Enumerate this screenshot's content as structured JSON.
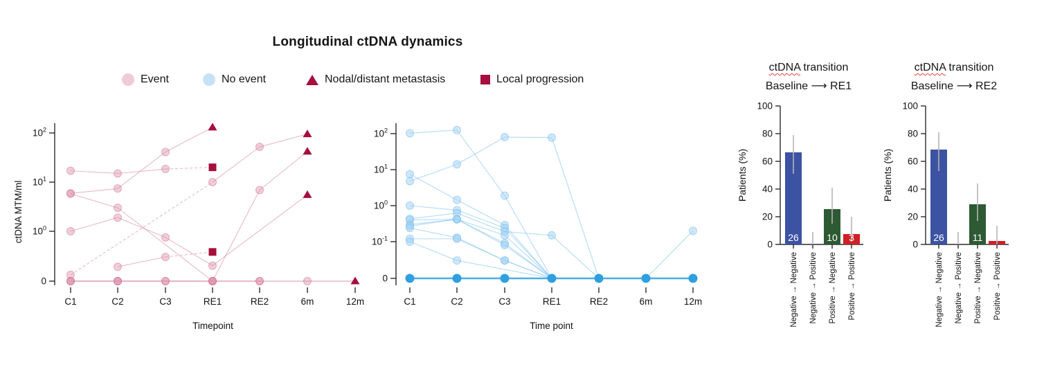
{
  "figure_title": "Longitudinal ctDNA dynamics",
  "legend": {
    "items": [
      {
        "label": "Event",
        "marker": "circle",
        "color": "#f0cbd7"
      },
      {
        "label": "No event",
        "marker": "circle",
        "color": "#c6e2f7"
      },
      {
        "label": "Nodal/distant metastasis",
        "marker": "triangle",
        "color": "#a50e3d"
      },
      {
        "label": "Local progression",
        "marker": "square",
        "color": "#a50e3d"
      }
    ]
  },
  "chart_data": [
    {
      "id": "event-plot",
      "type": "line",
      "group": "Event",
      "xlabel": "Timepoint",
      "ylabel": "ctDNA MTM/ml",
      "x_categories": [
        "C1",
        "C2",
        "C3",
        "RE1",
        "RE2",
        "6m",
        "12m"
      ],
      "y_scale": "symlog",
      "y_ticks": [
        {
          "label": "10",
          "exp": "2",
          "value": 100
        },
        {
          "label": "10",
          "exp": "1",
          "value": 10
        },
        {
          "label": "10",
          "exp": "0",
          "value": 1
        },
        {
          "label": "0",
          "exp": "",
          "value": 0
        }
      ],
      "marker_legend": {
        "triangle": "Nodal/distant metastasis",
        "square": "Local progression"
      },
      "series": [
        {
          "name": "event-patient-1",
          "points": [
            {
              "t": "C1",
              "v": 17
            },
            {
              "t": "C2",
              "v": 15
            },
            {
              "t": "C3",
              "v": 18.5
            },
            {
              "t": "RE1",
              "v": 20,
              "m": "square",
              "d": true
            }
          ]
        },
        {
          "name": "event-patient-2",
          "points": [
            {
              "t": "C1",
              "v": 5.9
            },
            {
              "t": "C2",
              "v": 7.4
            },
            {
              "t": "C3",
              "v": 41
            },
            {
              "t": "RE1",
              "v": 130,
              "m": "triangle"
            }
          ]
        },
        {
          "name": "event-patient-3",
          "points": [
            {
              "t": "C1",
              "v": 5.8
            },
            {
              "t": "C2",
              "v": 3.0
            },
            {
              "t": "RE1",
              "v": 0
            },
            {
              "t": "RE2",
              "v": 6.9
            },
            {
              "t": "6m",
              "v": 42,
              "m": "triangle"
            }
          ]
        },
        {
          "name": "event-patient-4",
          "points": [
            {
              "t": "C1",
              "v": 1.0
            },
            {
              "t": "C2",
              "v": 1.9
            },
            {
              "t": "C3",
              "v": 0.75
            },
            {
              "t": "RE1",
              "v": 0.2
            },
            {
              "t": "6m",
              "v": 5.5,
              "m": "triangle"
            }
          ]
        },
        {
          "name": "event-patient-5",
          "points": [
            {
              "t": "C1",
              "v": 0.13
            },
            {
              "t": "RE1",
              "v": 10,
              "d": true
            },
            {
              "t": "RE2",
              "v": 52
            },
            {
              "t": "6m",
              "v": 95,
              "m": "triangle"
            }
          ]
        },
        {
          "name": "event-patient-6",
          "points": [
            {
              "t": "C2",
              "v": 0.19
            },
            {
              "t": "C3",
              "v": 0.3
            },
            {
              "t": "RE1",
              "v": 0.38,
              "m": "square",
              "d": true
            }
          ]
        },
        {
          "name": "event-patient-7",
          "style": "zero",
          "points": [
            {
              "t": "C1",
              "v": 0
            },
            {
              "t": "C2",
              "v": 0
            },
            {
              "t": "C3",
              "v": 0
            },
            {
              "t": "RE1",
              "v": 0
            },
            {
              "t": "RE2",
              "v": 0
            },
            {
              "t": "6m",
              "v": 0
            },
            {
              "t": "12m",
              "v": 0,
              "m": "triangle"
            }
          ]
        },
        {
          "name": "event-patient-8",
          "style": "zero",
          "points": [
            {
              "t": "C1",
              "v": 0
            },
            {
              "t": "C2",
              "v": 0
            },
            {
              "t": "C3",
              "v": 0
            },
            {
              "t": "RE1",
              "v": 0
            }
          ]
        },
        {
          "name": "event-patient-9",
          "style": "zero",
          "points": [
            {
              "t": "C1",
              "v": 0
            },
            {
              "t": "C2",
              "v": 0
            },
            {
              "t": "RE1",
              "v": 0
            },
            {
              "t": "RE2",
              "v": 0
            }
          ]
        }
      ]
    },
    {
      "id": "no-event-plot",
      "type": "line",
      "group": "No event",
      "xlabel": "Time point",
      "ylabel": "",
      "x_categories": [
        "C1",
        "C2",
        "C3",
        "RE1",
        "RE2",
        "6m",
        "12m"
      ],
      "y_scale": "symlog",
      "y_ticks": [
        {
          "label": "10",
          "exp": "2",
          "value": 100
        },
        {
          "label": "10",
          "exp": "1",
          "value": 10
        },
        {
          "label": "10",
          "exp": "0",
          "value": 1
        },
        {
          "label": "10",
          "exp": "-1",
          "value": 0.1
        },
        {
          "label": "0",
          "exp": "",
          "value": 0
        }
      ],
      "series": [
        {
          "name": "noevent-patient-1",
          "points": [
            {
              "t": "C1",
              "v": 103
            },
            {
              "t": "C2",
              "v": 126
            },
            {
              "t": "C3",
              "v": 1.9
            },
            {
              "t": "RE1",
              "v": 0
            }
          ]
        },
        {
          "name": "noevent-patient-2",
          "points": [
            {
              "t": "C1",
              "v": 4.8
            },
            {
              "t": "C2",
              "v": 14
            },
            {
              "t": "C3",
              "v": 80
            },
            {
              "t": "RE1",
              "v": 78
            },
            {
              "t": "RE2",
              "v": 0
            }
          ]
        },
        {
          "name": "noevent-patient-3",
          "points": [
            {
              "t": "C1",
              "v": 7.5
            },
            {
              "t": "C2",
              "v": 1.45
            },
            {
              "t": "C3",
              "v": 0.29
            },
            {
              "t": "RE1",
              "v": 0
            }
          ]
        },
        {
          "name": "noevent-patient-4",
          "points": [
            {
              "t": "C1",
              "v": 1.0
            },
            {
              "t": "C2",
              "v": 0.75
            },
            {
              "t": "C3",
              "v": 0.24
            },
            {
              "t": "RE1",
              "v": 0
            }
          ]
        },
        {
          "name": "noevent-patient-5",
          "points": [
            {
              "t": "C1",
              "v": 0.43
            },
            {
              "t": "C2",
              "v": 0.62
            },
            {
              "t": "C3",
              "v": 0.19
            },
            {
              "t": "RE1",
              "v": 0.15
            },
            {
              "t": "RE2",
              "v": 0
            }
          ]
        },
        {
          "name": "noevent-patient-6",
          "points": [
            {
              "t": "C1",
              "v": 0.4
            },
            {
              "t": "C2",
              "v": 0.42
            },
            {
              "t": "C3",
              "v": 0.15
            },
            {
              "t": "RE1",
              "v": 0
            }
          ]
        },
        {
          "name": "noevent-patient-7",
          "points": [
            {
              "t": "C1",
              "v": 0.3
            },
            {
              "t": "C2",
              "v": 0.42
            },
            {
              "t": "C3",
              "v": 0.09
            },
            {
              "t": "RE1",
              "v": 0
            }
          ]
        },
        {
          "name": "noevent-patient-8",
          "points": [
            {
              "t": "C1",
              "v": 0.27
            },
            {
              "t": "C2",
              "v": 0.42
            },
            {
              "t": "C3",
              "v": 0.08
            },
            {
              "t": "RE1",
              "v": 0
            }
          ]
        },
        {
          "name": "noevent-patient-9",
          "points": [
            {
              "t": "C1",
              "v": 0.24
            },
            {
              "t": "C2",
              "v": 0.13
            },
            {
              "t": "C3",
              "v": 0.03
            },
            {
              "t": "RE1",
              "v": 0
            }
          ]
        },
        {
          "name": "noevent-patient-10",
          "points": [
            {
              "t": "C1",
              "v": 0.12
            },
            {
              "t": "C2",
              "v": 0.12
            },
            {
              "t": "C3",
              "v": 0.03
            },
            {
              "t": "RE1",
              "v": 0
            }
          ]
        },
        {
          "name": "noevent-patient-11",
          "points": [
            {
              "t": "C1",
              "v": 0.1
            },
            {
              "t": "C2",
              "v": 0.03
            },
            {
              "t": "RE1",
              "v": 0
            }
          ]
        },
        {
          "name": "noevent-zero-line",
          "style": "zero",
          "points": [
            {
              "t": "C1",
              "v": 0,
              "m": "bigdot"
            },
            {
              "t": "C2",
              "v": 0,
              "m": "bigdot"
            },
            {
              "t": "C3",
              "v": 0,
              "m": "bigdot"
            },
            {
              "t": "RE1",
              "v": 0,
              "m": "bigdot"
            },
            {
              "t": "RE2",
              "v": 0,
              "m": "bigdot"
            },
            {
              "t": "6m",
              "v": 0,
              "m": "bigdot"
            },
            {
              "t": "12m",
              "v": 0,
              "m": "bigdot"
            }
          ]
        },
        {
          "name": "noevent-patient-12",
          "points": [
            {
              "t": "6m",
              "v": 0,
              "m": "hide"
            },
            {
              "t": "12m",
              "v": 0.2
            }
          ]
        }
      ]
    },
    {
      "id": "transition-re1",
      "type": "bar",
      "title_word": "ctDNA",
      "title_rest": " transition",
      "subtitle": "Baseline ⟶ RE1",
      "title_lines": [
        "ctDNA transition",
        "Baseline → RE1"
      ],
      "ylabel": "Patients (%)",
      "ylim": [
        0,
        100
      ],
      "y_ticks": [
        0,
        20,
        40,
        60,
        80,
        100
      ],
      "categories": [
        "Negative → Negative",
        "Negative → Positive",
        "Positive → Negative",
        "Positive → Positive"
      ],
      "values": [
        66.5,
        0,
        25.5,
        7.5
      ],
      "error_low": [
        51,
        0,
        15,
        2
      ],
      "error_high": [
        79,
        9,
        41,
        20
      ],
      "bar_labels": [
        "26",
        "",
        "10",
        "3"
      ],
      "bar_colors": [
        "#3c52a3",
        "#888888",
        "#2d5a33",
        "#d02027"
      ]
    },
    {
      "id": "transition-re2",
      "type": "bar",
      "title_word": "ctDNA",
      "title_rest": " transition",
      "subtitle": "Baseline ⟶ RE2",
      "title_lines": [
        "ctDNA transition",
        "Baseline → RE2"
      ],
      "ylabel": "Patients (%)",
      "ylim": [
        0,
        100
      ],
      "y_ticks": [
        0,
        20,
        40,
        60,
        80,
        100
      ],
      "categories": [
        "Negative → Negative",
        "Negative → Positive",
        "Positive → Negative",
        "Positive → Positive"
      ],
      "values": [
        68.5,
        0,
        29,
        2.5
      ],
      "error_low": [
        53,
        0,
        17,
        0
      ],
      "error_high": [
        81,
        9,
        44,
        13.5
      ],
      "bar_labels": [
        "26",
        "",
        "11",
        ""
      ],
      "bar_colors": [
        "#3c52a3",
        "#888888",
        "#2d5a33",
        "#d02027"
      ]
    }
  ]
}
